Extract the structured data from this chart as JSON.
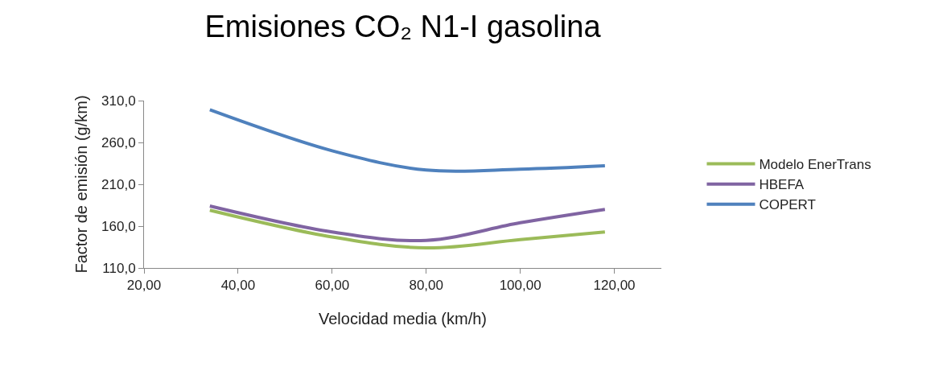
{
  "chart_data": {
    "type": "line",
    "title": "Emisiones CO₂ N1-I gasolina",
    "xlabel": "Velocidad media (km/h)",
    "ylabel": "Factor de emisión (g/km)",
    "x": [
      34,
      60,
      80,
      100,
      118
    ],
    "series": [
      {
        "name": "Modelo EnerTrans",
        "color": "#9bbb59",
        "values": [
          179,
          147,
          134,
          144,
          153
        ]
      },
      {
        "name": "HBEFA",
        "color": "#8064a2",
        "values": [
          184,
          153,
          143,
          164,
          180
        ]
      },
      {
        "name": "COPERT",
        "color": "#4f81bd",
        "values": [
          299,
          250,
          227,
          228,
          232
        ]
      }
    ],
    "xlim": [
      20,
      130
    ],
    "xticks": [
      {
        "value": 20,
        "label": "20,00"
      },
      {
        "value": 40,
        "label": "40,00"
      },
      {
        "value": 60,
        "label": "60,00"
      },
      {
        "value": 80,
        "label": "80,00"
      },
      {
        "value": 100,
        "label": "100,00"
      },
      {
        "value": 120,
        "label": "120,00"
      }
    ],
    "ylim": [
      110,
      310
    ],
    "yticks": [
      {
        "value": 110,
        "label": "110,0"
      },
      {
        "value": 160,
        "label": "160,0"
      },
      {
        "value": 210,
        "label": "210,0"
      },
      {
        "value": 260,
        "label": "260,0"
      },
      {
        "value": 310,
        "label": "310,0"
      }
    ],
    "grid": false,
    "legend": "right",
    "marker": "none",
    "line_style": "solid"
  }
}
